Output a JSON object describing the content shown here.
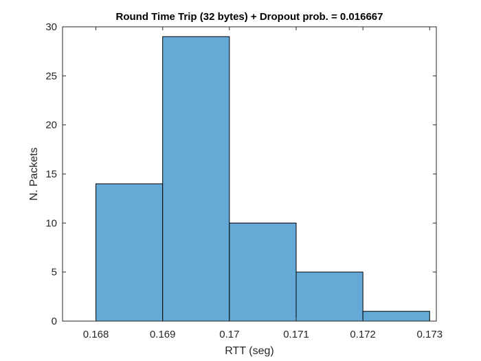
{
  "chart_data": {
    "type": "bar",
    "title": "Round Time Trip (32 bytes) + Dropout prob. = 0.016667",
    "xlabel": "RTT (seg)",
    "ylabel": "N. Packets",
    "bin_edges": [
      0.168,
      0.169,
      0.17,
      0.171,
      0.172,
      0.173
    ],
    "values": [
      14,
      29,
      10,
      5,
      1
    ],
    "xlim": [
      0.1675,
      0.1731
    ],
    "ylim": [
      0,
      30
    ],
    "xticks": [
      0.168,
      0.169,
      0.17,
      0.171,
      0.172,
      0.173
    ],
    "xtick_labels": [
      "0.168",
      "0.169",
      "0.17",
      "0.171",
      "0.172",
      "0.173"
    ],
    "yticks": [
      0,
      5,
      10,
      15,
      20,
      25,
      30
    ],
    "ytick_labels": [
      "0",
      "5",
      "10",
      "15",
      "20",
      "25",
      "30"
    ],
    "grid": false,
    "bar_color": "#65a9d7",
    "edge_color": "#000000"
  }
}
